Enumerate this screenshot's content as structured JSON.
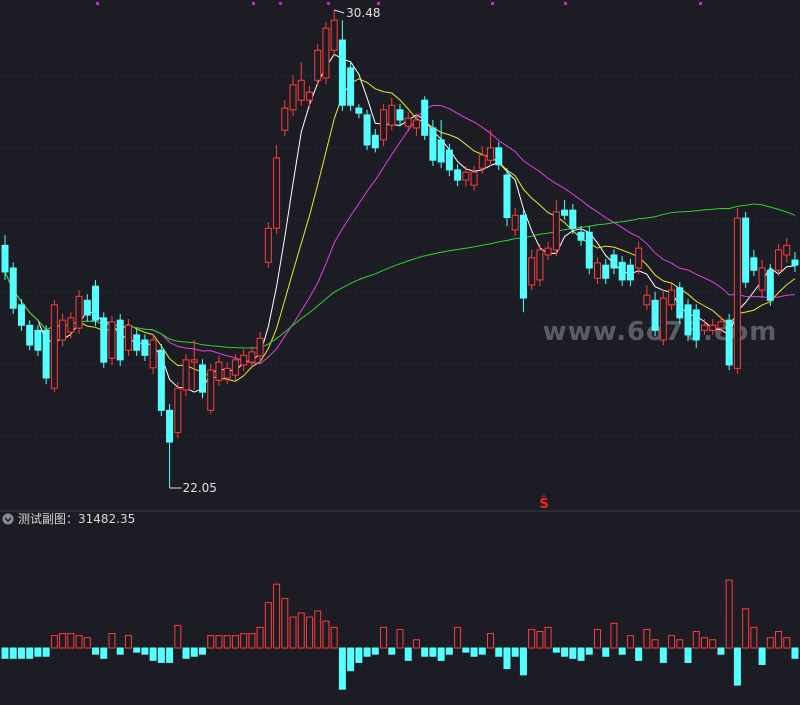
{
  "chart_data": {
    "type": "candlestick",
    "up_color": "#ff3b3b",
    "down_color": "#54ffff",
    "candles": {
      "open": [
        26.33,
        25.93,
        25.28,
        24.92,
        24.83,
        24.83,
        23.81,
        24.66,
        24.8,
        24.87,
        25.36,
        25.61,
        25.05,
        24.34,
        25.01,
        24.48,
        24.75,
        24.66,
        24.17,
        24.48,
        23.42,
        23.03,
        23.78,
        24.27,
        24.22,
        23.42,
        23.95,
        23.99,
        24.04,
        24.22,
        24.27,
        24.38,
        26.03,
        26.63,
        28.36,
        28.72,
        28.89,
        28.89,
        29.24,
        29.28,
        29.77,
        29.95,
        29.46,
        28.75,
        28.63,
        28.27,
        28.19,
        28.45,
        28.72,
        28.43,
        28.4,
        28.89,
        28.4,
        28.19,
        28.01,
        27.66,
        27.48,
        27.39,
        27.69,
        27.83,
        28.05,
        27.57,
        26.6,
        26.86,
        25.63,
        25.72,
        26.16,
        26.25,
        26.95,
        26.95,
        26.56,
        26.56,
        25.75,
        25.98,
        26.16,
        26.03,
        25.98,
        25.93,
        25.28,
        25.36,
        24.66,
        25.28,
        25.58,
        25.28,
        25.19,
        24.83,
        24.83,
        24.87,
        25.01,
        24.16,
        26.81,
        26.11,
        25.54,
        25.89,
        25.89,
        26.16,
        26.07
      ],
      "high": [
        26.51,
        26.03,
        25.38,
        25.01,
        24.92,
        24.92,
        25.36,
        25.12,
        25.15,
        25.54,
        25.47,
        25.72,
        25.15,
        25.08,
        25.12,
        25.03,
        24.85,
        24.76,
        24.76,
        24.59,
        23.53,
        23.92,
        24.41,
        24.66,
        24.32,
        24.24,
        24.38,
        24.27,
        24.41,
        24.5,
        24.55,
        24.8,
        26.74,
        28.1,
        28.89,
        29.33,
        29.56,
        29.14,
        29.88,
        30.27,
        30.48,
        30.3,
        29.56,
        28.82,
        28.72,
        28.38,
        28.82,
        28.93,
        28.82,
        28.68,
        28.65,
        28.96,
        28.54,
        28.54,
        28.12,
        27.76,
        27.73,
        27.73,
        28.08,
        28.36,
        28.15,
        27.69,
        26.99,
        26.95,
        26.25,
        26.35,
        26.39,
        27.13,
        27.13,
        27.06,
        26.67,
        26.67,
        26.12,
        26.09,
        26.26,
        26.14,
        26.09,
        26.39,
        25.63,
        25.51,
        25.54,
        25.65,
        25.68,
        25.38,
        25.29,
        25.03,
        25.03,
        25.08,
        25.12,
        26.99,
        26.92,
        26.25,
        26.07,
        26.0,
        26.35,
        26.46,
        26.21
      ],
      "low": [
        25.72,
        25.12,
        24.82,
        24.48,
        24.38,
        23.88,
        23.74,
        24.55,
        24.69,
        24.77,
        24.99,
        24.91,
        24.17,
        24.22,
        24.2,
        24.38,
        24.38,
        24.29,
        24.06,
        23.32,
        22.05,
        22.93,
        23.67,
        23.78,
        23.63,
        23.35,
        23.85,
        23.88,
        23.94,
        24.11,
        24.16,
        24.27,
        25.93,
        26.53,
        28.26,
        28.61,
        28.79,
        28.75,
        29.14,
        29.17,
        29.67,
        28.7,
        28.7,
        28.57,
        28.01,
        27.97,
        28.08,
        28.36,
        28.43,
        28.33,
        28.26,
        28.19,
        27.73,
        27.69,
        27.55,
        27.37,
        27.37,
        27.3,
        27.59,
        27.73,
        27.66,
        26.67,
        26.49,
        25.15,
        25.54,
        25.61,
        26.07,
        26.14,
        26.78,
        26.53,
        26.32,
        25.82,
        25.65,
        25.65,
        25.82,
        25.61,
        25.61,
        25.82,
        25.19,
        24.73,
        24.57,
        25.19,
        24.94,
        24.64,
        24.52,
        24.75,
        24.75,
        24.77,
        24.13,
        24.06,
        25.58,
        25.79,
        25.4,
        25.26,
        25.79,
        26.03,
        25.86
      ],
      "close": [
        25.86,
        25.22,
        24.92,
        24.57,
        24.48,
        23.99,
        25.28,
        25.01,
        25.05,
        25.43,
        25.1,
        25.01,
        24.27,
        24.98,
        24.31,
        24.92,
        24.48,
        24.39,
        24.66,
        23.42,
        22.86,
        23.81,
        24.31,
        24.31,
        23.74,
        24.13,
        24.27,
        24.16,
        24.31,
        24.39,
        24.45,
        24.69,
        26.63,
        27.87,
        28.75,
        29.16,
        29.24,
        29.03,
        29.77,
        30.16,
        30.3,
        28.8,
        28.8,
        28.66,
        28.1,
        28.05,
        28.72,
        28.8,
        28.54,
        28.57,
        28.54,
        28.27,
        27.83,
        27.8,
        27.66,
        27.48,
        27.62,
        27.62,
        27.92,
        28.05,
        27.75,
        26.82,
        26.86,
        25.4,
        26.11,
        26.25,
        26.28,
        26.92,
        26.86,
        26.63,
        26.42,
        25.93,
        26.02,
        25.75,
        25.93,
        25.72,
        25.72,
        26.28,
        25.45,
        24.83,
        25.4,
        25.54,
        25.05,
        24.75,
        24.66,
        24.92,
        24.92,
        24.98,
        24.22,
        26.81,
        25.68,
        25.89,
        25.93,
        25.36,
        26.25,
        26.33,
        25.98
      ]
    },
    "moving_averages": [
      {
        "period": 5,
        "color": "#ffffff"
      },
      {
        "period": 10,
        "color": "#e8e830"
      },
      {
        "period": 20,
        "color": "#e040e0"
      },
      {
        "period": 60,
        "color": "#30d030"
      }
    ],
    "watermark": "www.6o76.com",
    "signal": "Ŝ",
    "sub_chart": {
      "title": "测试副图：31482.35",
      "values": [
        -10,
        -10,
        -10,
        -10,
        -8,
        -8,
        12,
        14,
        14,
        12,
        10,
        -6,
        -10,
        14,
        -6,
        12,
        -4,
        -6,
        -12,
        -14,
        -14,
        22,
        -10,
        -8,
        -6,
        12,
        12,
        12,
        12,
        14,
        14,
        20,
        44,
        62,
        48,
        30,
        34,
        30,
        36,
        26,
        20,
        -40,
        -22,
        -14,
        -8,
        -6,
        20,
        -6,
        18,
        -12,
        8,
        -8,
        -8,
        -12,
        -6,
        20,
        -4,
        -8,
        -6,
        14,
        -8,
        -20,
        -8,
        -26,
        18,
        16,
        20,
        -4,
        -8,
        -10,
        -12,
        -6,
        18,
        -8,
        24,
        -6,
        12,
        -12,
        18,
        8,
        -14,
        12,
        8,
        -14,
        16,
        10,
        8,
        -6,
        66,
        -36,
        38,
        20,
        -16,
        10,
        16,
        10,
        -10
      ]
    }
  }
}
